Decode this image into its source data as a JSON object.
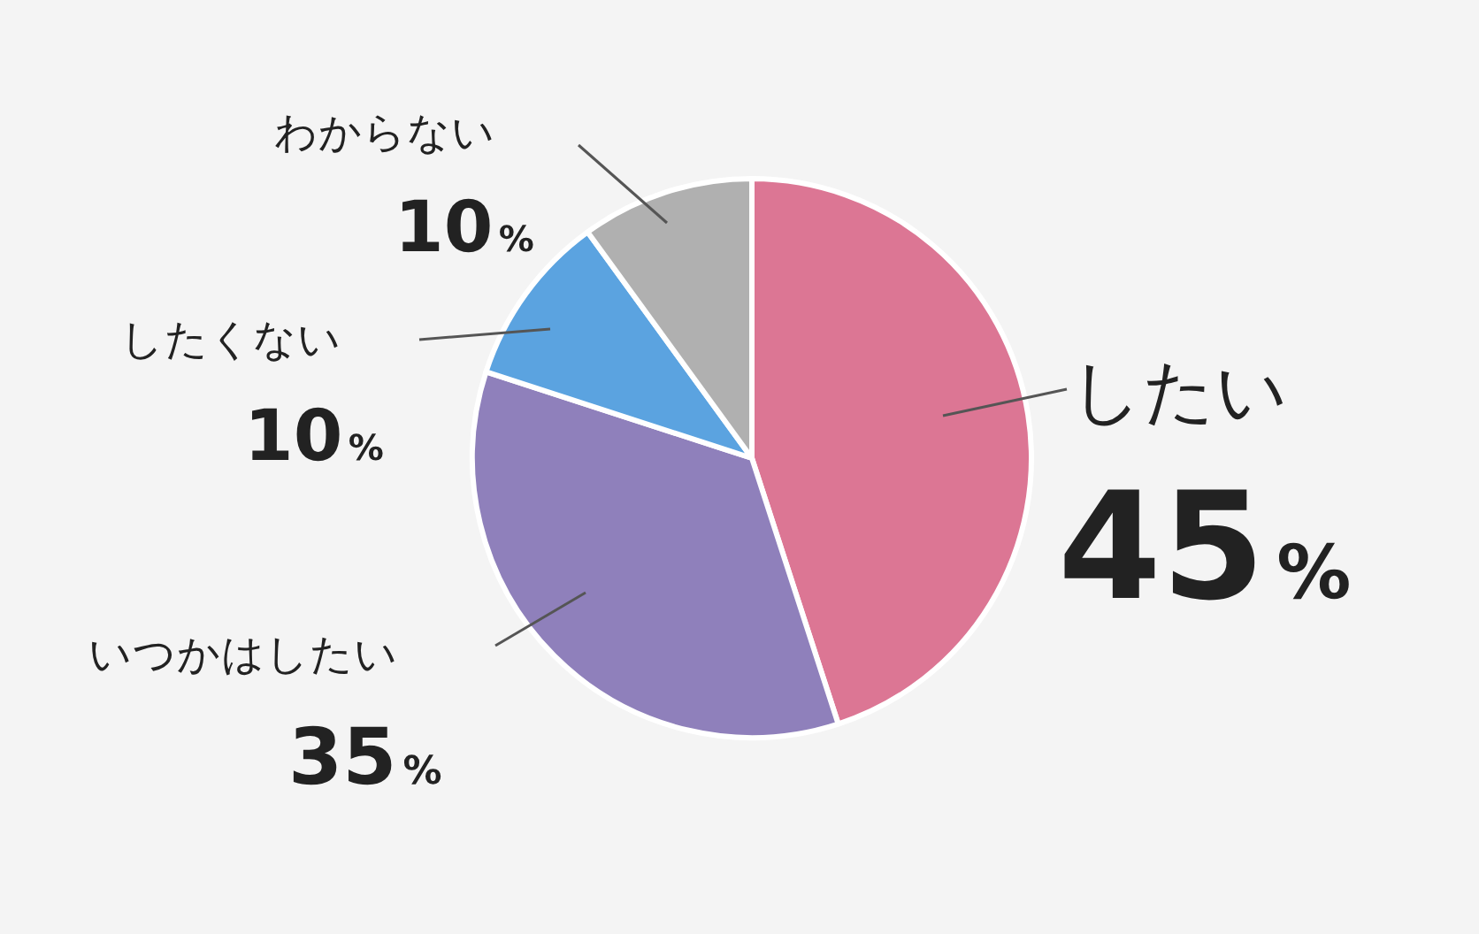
{
  "chart_data": {
    "type": "pie",
    "categories": [
      "したい",
      "いつかはしたい",
      "したくない",
      "わからない"
    ],
    "values": [
      45,
      35,
      10,
      10
    ],
    "colors": [
      "#dc7694",
      "#8f80bb",
      "#5ba3e0",
      "#b0b0b0"
    ],
    "value_labels": [
      "45%",
      "35%",
      "10%",
      "10%"
    ],
    "legend": false
  }
}
